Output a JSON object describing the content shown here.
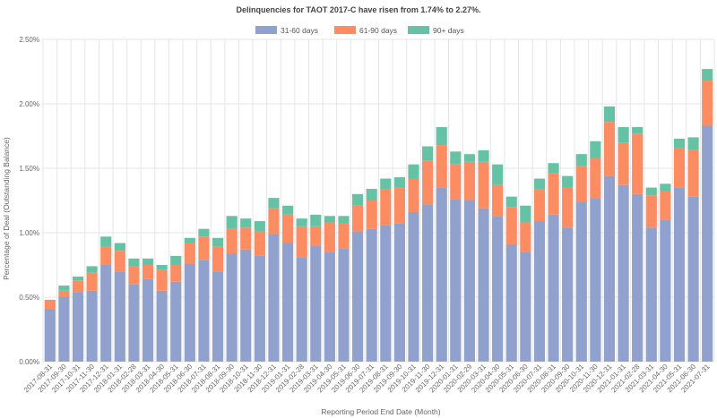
{
  "chart_data": {
    "type": "bar",
    "stacked": true,
    "title": "Delinquencies for TAOT 2017-C have risen from 1.74% to 2.27%.",
    "xlabel": "Reporting Period End Date (Month)",
    "ylabel": "Percentage of Deal (Outstanding Balance)",
    "ylim": [
      0,
      2.5
    ],
    "yticks": [
      "0.00%",
      "0.50%",
      "1.00%",
      "1.50%",
      "2.00%",
      "2.50%"
    ],
    "ytick_values": [
      0,
      0.5,
      1.0,
      1.5,
      2.0,
      2.5
    ],
    "grid": true,
    "legend_position": "top-center",
    "categories": [
      "2017-08-31",
      "2017-09-30",
      "2017-10-31",
      "2017-11-30",
      "2017-12-31",
      "2018-01-31",
      "2018-02-28",
      "2018-03-31",
      "2018-04-30",
      "2018-05-31",
      "2018-06-30",
      "2018-07-31",
      "2018-08-31",
      "2018-09-30",
      "2018-10-31",
      "2018-11-30",
      "2018-12-31",
      "2019-01-31",
      "2019-02-28",
      "2019-03-31",
      "2019-04-30",
      "2019-05-31",
      "2019-06-30",
      "2019-07-31",
      "2019-08-31",
      "2019-09-30",
      "2019-10-31",
      "2019-11-30",
      "2019-12-31",
      "2020-01-31",
      "2020-02-29",
      "2020-03-31",
      "2020-04-30",
      "2020-05-31",
      "2020-06-30",
      "2020-07-31",
      "2020-08-31",
      "2020-09-30",
      "2020-10-31",
      "2020-11-30",
      "2020-12-31",
      "2021-01-31",
      "2021-02-28",
      "2021-03-31",
      "2021-04-30",
      "2021-05-31",
      "2021-06-30",
      "2021-07-31"
    ],
    "series": [
      {
        "name": "31-60 days",
        "color": "#8fa1cc",
        "values": [
          0.41,
          0.5,
          0.54,
          0.55,
          0.75,
          0.7,
          0.6,
          0.64,
          0.55,
          0.62,
          0.76,
          0.79,
          0.7,
          0.84,
          0.87,
          0.82,
          0.99,
          0.92,
          0.81,
          0.9,
          0.85,
          0.88,
          1.01,
          1.03,
          1.06,
          1.07,
          1.16,
          1.22,
          1.35,
          1.26,
          1.25,
          1.19,
          1.13,
          0.91,
          0.85,
          1.09,
          1.14,
          1.04,
          1.24,
          1.27,
          1.44,
          1.37,
          1.3,
          1.04,
          1.1,
          1.35,
          1.28,
          1.83
        ]
      },
      {
        "name": "61-90 days",
        "color": "#fc8d62",
        "values": [
          0.07,
          0.05,
          0.09,
          0.14,
          0.14,
          0.16,
          0.14,
          0.11,
          0.16,
          0.13,
          0.16,
          0.18,
          0.19,
          0.19,
          0.17,
          0.19,
          0.2,
          0.22,
          0.24,
          0.15,
          0.23,
          0.19,
          0.2,
          0.22,
          0.28,
          0.28,
          0.26,
          0.34,
          0.33,
          0.27,
          0.3,
          0.36,
          0.24,
          0.29,
          0.23,
          0.25,
          0.32,
          0.31,
          0.28,
          0.31,
          0.42,
          0.33,
          0.47,
          0.25,
          0.22,
          0.31,
          0.36,
          0.35
        ]
      },
      {
        "name": "90+ days",
        "color": "#66c2a5",
        "values": [
          0.0,
          0.04,
          0.03,
          0.05,
          0.08,
          0.06,
          0.06,
          0.05,
          0.04,
          0.07,
          0.04,
          0.06,
          0.07,
          0.1,
          0.07,
          0.08,
          0.08,
          0.07,
          0.06,
          0.09,
          0.05,
          0.06,
          0.09,
          0.09,
          0.08,
          0.08,
          0.11,
          0.11,
          0.14,
          0.1,
          0.06,
          0.09,
          0.16,
          0.08,
          0.13,
          0.08,
          0.08,
          0.09,
          0.09,
          0.13,
          0.12,
          0.12,
          0.05,
          0.06,
          0.06,
          0.07,
          0.1,
          0.09
        ]
      }
    ]
  }
}
